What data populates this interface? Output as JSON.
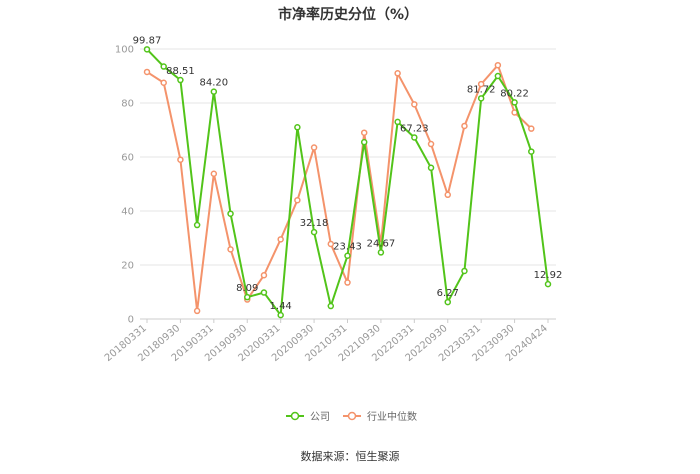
{
  "title": "市净率历史分位（%）",
  "source": "数据来源：恒生聚源",
  "colors": {
    "company": "#52c41a",
    "industry": "#f4936b",
    "grid": "#e6e6e6",
    "axis": "#cccccc"
  },
  "chart_data": {
    "type": "line",
    "title": "市净率历史分位（%）",
    "xlabel": "",
    "ylabel": "",
    "ylim": [
      0,
      100
    ],
    "yticks": [
      0,
      20,
      40,
      60,
      80,
      100
    ],
    "grid": true,
    "legend": "bottom-center",
    "x_tick_labels": [
      "20180331",
      "20180930",
      "20190331",
      "20190930",
      "20200331",
      "20200930",
      "20210331",
      "20210930",
      "20220331",
      "20220930",
      "20230331",
      "20230930",
      "20240424"
    ],
    "series": [
      {
        "name": "公司",
        "values": [
          99.87,
          93.5,
          88.51,
          34.8,
          84.2,
          39.0,
          8.09,
          9.8,
          1.44,
          71.0,
          32.18,
          4.8,
          23.43,
          65.5,
          24.67,
          73.0,
          67.23,
          56.0,
          6.27,
          17.8,
          81.72,
          90.0,
          80.22,
          62.0,
          12.92
        ],
        "labels": {
          "0": "99.87",
          "2": "88.51",
          "4": "84.20",
          "6": "8.09",
          "8": "1.44",
          "10": "32.18",
          "12": "23.43",
          "14": "24.67",
          "16": "67.23",
          "18": "6.27",
          "20": "81.72",
          "22": "80.22",
          "24": "12.92"
        }
      },
      {
        "name": "行业中位数",
        "values": [
          91.5,
          87.5,
          59.0,
          3.0,
          53.8,
          25.8,
          7.2,
          16.2,
          29.5,
          44.0,
          63.5,
          27.8,
          13.5,
          69.0,
          27.8,
          91.0,
          79.5,
          64.8,
          46.0,
          71.5,
          87.0,
          94.0,
          76.5,
          70.5
        ]
      }
    ]
  }
}
